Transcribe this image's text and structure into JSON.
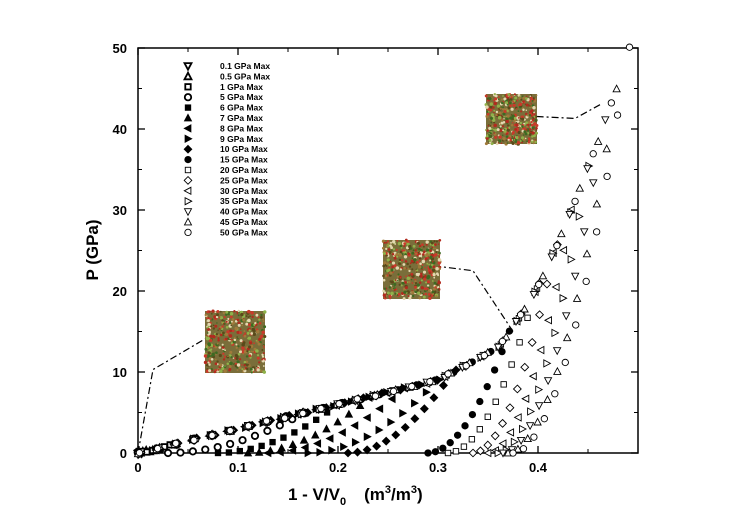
{
  "chart_data": {
    "type": "scatter",
    "title": "",
    "xlabel_main": "1 - V/V",
    "xlabel_sub": "0",
    "xlabel_units_open": "(m",
    "xlabel_units_sup1": "3",
    "xlabel_units_mid": "/m",
    "xlabel_units_sup2": "3",
    "xlabel_units_close": ")",
    "ylabel": "P  (GPa)",
    "xlim": [
      0,
      0.5
    ],
    "ylim": [
      0,
      50
    ],
    "x_ticks": [
      0,
      0.1,
      0.2,
      0.3,
      0.4
    ],
    "x_tick_labels": [
      "0",
      "0.1",
      "0.2",
      "0.3",
      "0.4"
    ],
    "y_ticks": [
      0,
      10,
      20,
      30,
      40,
      50
    ],
    "y_tick_labels": [
      "0",
      "10",
      "20",
      "30",
      "40",
      "50"
    ],
    "legend_position": "top-left",
    "series": [
      {
        "name": "0.1 GPa Max",
        "marker": "triangle-down-bold",
        "pmax": 0.1,
        "xr": 0.0
      },
      {
        "name": "0.5 GPa Max",
        "marker": "triangle-up-bold",
        "pmax": 0.5,
        "xr": 0.0
      },
      {
        "name": "1 GPa Max",
        "marker": "square-bold",
        "pmax": 1,
        "xr": 0.0
      },
      {
        "name": "5 GPa Max",
        "marker": "circle-bold",
        "pmax": 5,
        "xr": 0.03
      },
      {
        "name": "6 GPa Max",
        "marker": "square-filled",
        "pmax": 6,
        "xr": 0.08
      },
      {
        "name": "7 GPa Max",
        "marker": "triangle-up-filled",
        "pmax": 7,
        "xr": 0.11
      },
      {
        "name": "8 GPa Max",
        "marker": "triangle-left-filled",
        "pmax": 8,
        "xr": 0.13
      },
      {
        "name": "9 GPa Max",
        "marker": "triangle-right-filled",
        "pmax": 9,
        "xr": 0.17
      },
      {
        "name": "10 GPa Max",
        "marker": "diamond-filled",
        "pmax": 10,
        "xr": 0.21
      },
      {
        "name": "15 GPa Max",
        "marker": "circle-filled",
        "pmax": 15,
        "xr": 0.29
      },
      {
        "name": "20 GPa Max",
        "marker": "square-open",
        "pmax": 20,
        "xr": 0.31
      },
      {
        "name": "25 GPa Max",
        "marker": "diamond-open",
        "pmax": 25,
        "xr": 0.335
      },
      {
        "name": "30 GPa Max",
        "marker": "triangle-left-open",
        "pmax": 30,
        "xr": 0.35
      },
      {
        "name": "35 GPa Max",
        "marker": "triangle-right-open",
        "pmax": 35,
        "xr": 0.36
      },
      {
        "name": "40 GPa Max",
        "marker": "triangle-down-open",
        "pmax": 40,
        "xr": 0.365
      },
      {
        "name": "45 GPa Max",
        "marker": "triangle-up-open",
        "pmax": 45,
        "xr": 0.37
      },
      {
        "name": "50 GPa Max",
        "marker": "circle-open",
        "pmax": 50,
        "xr": 0.375
      }
    ],
    "loading_curve": {
      "x": [
        0,
        0.02,
        0.05,
        0.1,
        0.15,
        0.2,
        0.25,
        0.3,
        0.33,
        0.36,
        0.38,
        0.4,
        0.42,
        0.44,
        0.46,
        0.48,
        0.49
      ],
      "y": [
        0,
        0.5,
        1.5,
        3.0,
        4.5,
        6.0,
        7.5,
        9.0,
        11.0,
        13.0,
        16.5,
        20.5,
        26.0,
        32.0,
        38.5,
        45.5,
        50.0
      ]
    },
    "insets": [
      {
        "name": "microstructure at ~2 GPa",
        "anchor": [
          0.0,
          0.0
        ],
        "elbow": [
          0.015,
          10.3
        ]
      },
      {
        "name": "microstructure at ~15 GPa",
        "anchor": [
          0.375,
          15.0
        ],
        "elbow": [
          0.335,
          22.5
        ]
      },
      {
        "name": "microstructure at ~43 GPa",
        "anchor": [
          0.462,
          43.0
        ],
        "elbow": [
          0.437,
          41.3
        ]
      }
    ],
    "colors": {
      "axis": "#000000",
      "marker": "#000000",
      "inset_base": "#7a6e3a"
    }
  }
}
